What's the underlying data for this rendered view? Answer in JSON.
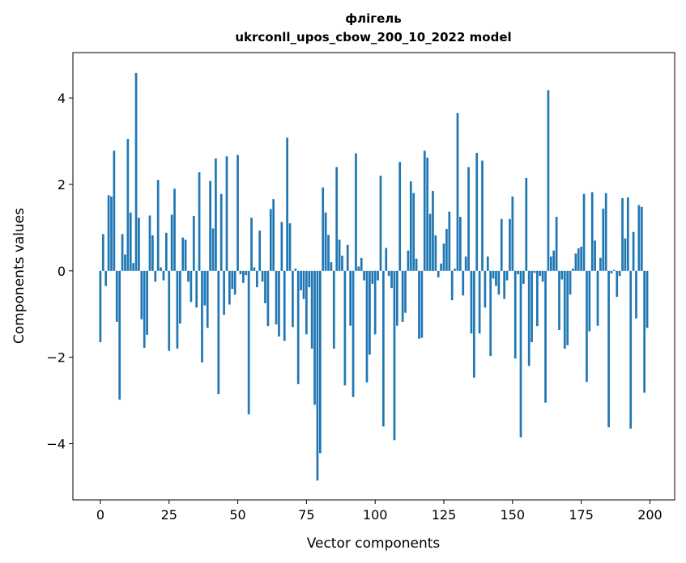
{
  "chart_data": {
    "type": "bar",
    "title": "флігель",
    "subtitle": "ukrconll_upos_cbow_200_10_2022 model",
    "xlabel": "Vector components",
    "ylabel": "Components values",
    "xlim": [
      -10,
      209
    ],
    "ylim": [
      -5.3,
      5.05
    ],
    "xticks": [
      0,
      25,
      50,
      75,
      100,
      125,
      150,
      175,
      200
    ],
    "yticks": [
      -4,
      -2,
      0,
      2,
      4
    ],
    "ytick_labels": [
      "−4",
      "−2",
      "0",
      "2",
      "4"
    ],
    "grid": false,
    "color": "#1f77b4",
    "x": [
      0,
      1,
      2,
      3,
      4,
      5,
      6,
      7,
      8,
      9,
      10,
      11,
      12,
      13,
      14,
      15,
      16,
      17,
      18,
      19,
      20,
      21,
      22,
      23,
      24,
      25,
      26,
      27,
      28,
      29,
      30,
      31,
      32,
      33,
      34,
      35,
      36,
      37,
      38,
      39,
      40,
      41,
      42,
      43,
      44,
      45,
      46,
      47,
      48,
      49,
      50,
      51,
      52,
      53,
      54,
      55,
      56,
      57,
      58,
      59,
      60,
      61,
      62,
      63,
      64,
      65,
      66,
      67,
      68,
      69,
      70,
      71,
      72,
      73,
      74,
      75,
      76,
      77,
      78,
      79,
      80,
      81,
      82,
      83,
      84,
      85,
      86,
      87,
      88,
      89,
      90,
      91,
      92,
      93,
      94,
      95,
      96,
      97,
      98,
      99,
      100,
      101,
      102,
      103,
      104,
      105,
      106,
      107,
      108,
      109,
      110,
      111,
      112,
      113,
      114,
      115,
      116,
      117,
      118,
      119,
      120,
      121,
      122,
      123,
      124,
      125,
      126,
      127,
      128,
      129,
      130,
      131,
      132,
      133,
      134,
      135,
      136,
      137,
      138,
      139,
      140,
      141,
      142,
      143,
      144,
      145,
      146,
      147,
      148,
      149,
      150,
      151,
      152,
      153,
      154,
      155,
      156,
      157,
      158,
      159,
      160,
      161,
      162,
      163,
      164,
      165,
      166,
      167,
      168,
      169,
      170,
      171,
      172,
      173,
      174,
      175,
      176,
      177,
      178,
      179,
      180,
      181,
      182,
      183,
      184,
      185,
      186,
      187,
      188,
      189,
      190,
      191,
      192,
      193,
      194,
      195,
      196,
      197,
      198,
      199
    ],
    "values": [
      -1.65,
      0.85,
      -0.35,
      1.75,
      1.72,
      2.78,
      -1.18,
      -2.98,
      0.85,
      0.38,
      3.05,
      1.35,
      0.18,
      4.58,
      1.23,
      -1.12,
      -1.78,
      -1.48,
      1.28,
      0.82,
      -0.25,
      2.1,
      0.08,
      -0.22,
      0.88,
      -1.85,
      1.3,
      1.9,
      -1.8,
      -1.22,
      0.77,
      0.72,
      -0.25,
      -0.72,
      1.27,
      -0.85,
      2.28,
      -2.12,
      -0.8,
      -1.32,
      2.08,
      0.98,
      2.6,
      -2.85,
      1.78,
      -1.02,
      2.65,
      -0.78,
      -0.42,
      -0.55,
      2.68,
      -0.08,
      -0.28,
      -0.1,
      -3.32,
      1.23,
      0.08,
      -0.38,
      0.93,
      -0.25,
      -0.75,
      -1.28,
      1.43,
      1.66,
      -1.24,
      -1.52,
      1.13,
      -1.62,
      3.08,
      1.1,
      -1.3,
      0.05,
      -2.62,
      -0.45,
      -0.65,
      -1.47,
      -0.38,
      -1.8,
      -3.1,
      -4.85,
      -4.22,
      1.93,
      1.35,
      0.83,
      0.2,
      -1.8,
      2.4,
      0.72,
      0.35,
      -2.65,
      0.6,
      -1.27,
      -2.92,
      2.72,
      0.1,
      0.3,
      -0.22,
      -2.58,
      -1.94,
      -0.3,
      -1.47,
      -0.22,
      2.2,
      -3.6,
      0.53,
      -0.12,
      -0.4,
      -3.92,
      -1.27,
      2.52,
      -1.18,
      -0.97,
      0.47,
      2.07,
      1.8,
      0.28,
      -1.57,
      -1.55,
      2.78,
      2.62,
      1.32,
      1.85,
      0.82,
      -0.15,
      0.17,
      0.63,
      0.97,
      1.37,
      -0.68,
      0.05,
      3.65,
      1.25,
      -0.57,
      0.33,
      2.4,
      -1.45,
      -2.47,
      2.73,
      -1.45,
      2.55,
      -0.85,
      0.33,
      -1.97,
      -0.18,
      -0.35,
      -0.55,
      1.2,
      -0.65,
      -0.22,
      1.2,
      1.72,
      -2.03,
      -0.08,
      -3.85,
      -0.3,
      2.15,
      -2.2,
      -1.65,
      -0.05,
      -1.28,
      -0.12,
      -0.25,
      -3.05,
      4.18,
      0.33,
      0.47,
      1.25,
      -1.37,
      -0.2,
      -1.8,
      -1.72,
      -0.55,
      0.05,
      0.4,
      0.52,
      0.56,
      1.78,
      -2.57,
      -1.4,
      1.82,
      0.7,
      -1.27,
      0.3,
      1.44,
      1.8,
      -3.62,
      -0.06,
      0.02,
      -0.6,
      -0.12,
      1.68,
      0.75,
      1.7,
      -3.65,
      0.9,
      -1.1,
      1.52,
      1.48,
      -2.82,
      -1.32
    ]
  }
}
